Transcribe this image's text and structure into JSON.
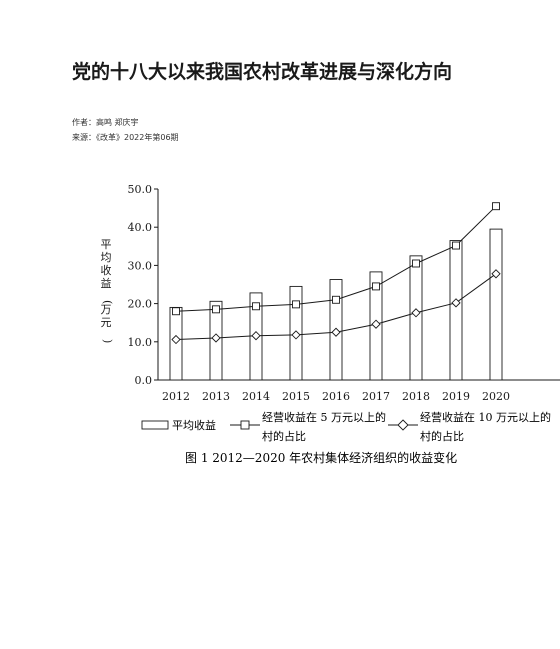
{
  "article": {
    "title": "党的十八大以来我国农村改革进展与深化方向",
    "authors": "作者：高鸣 郑庆宇",
    "source": "来源：《改革》2022年第06期"
  },
  "figure": {
    "caption": "图 1   2012—2020 年农村集体经济组织的收益变化",
    "ylabel": "平均收益(万元)",
    "legend": [
      {
        "label": "平均收益",
        "marker": "bar"
      },
      {
        "label_line1": "经营收益在 5 万元以上的",
        "label_line2": "村的占比",
        "marker": "square"
      },
      {
        "label_line1": "经营收益在 10 万元以上的",
        "label_line2": "村的占比",
        "marker": "diamond"
      }
    ]
  },
  "chart_data": {
    "type": "bar",
    "categories": [
      "2012",
      "2013",
      "2014",
      "2015",
      "2016",
      "2017",
      "2018",
      "2019",
      "2020"
    ],
    "ylim": [
      0,
      50
    ],
    "yticks": [
      "0.0",
      "10.0",
      "20.0",
      "30.0",
      "40.0",
      "50.0"
    ],
    "ylabel": "平均收益(万元)",
    "series": [
      {
        "name": "平均收益",
        "kind": "bar",
        "values": [
          19.0,
          20.6,
          22.8,
          24.5,
          26.3,
          28.3,
          32.5,
          36.5,
          39.5
        ]
      },
      {
        "name": "经营收益在 5 万元以上的村的占比",
        "kind": "line",
        "marker": "square",
        "values": [
          18.0,
          18.5,
          19.3,
          19.8,
          21.0,
          24.5,
          30.5,
          35.2,
          45.5
        ]
      },
      {
        "name": "经营收益在 10 万元以上的村的占比",
        "kind": "line",
        "marker": "diamond",
        "values": [
          10.6,
          11.0,
          11.6,
          11.8,
          12.5,
          14.6,
          17.6,
          20.2,
          27.8
        ]
      }
    ],
    "grid": false,
    "legend_position": "bottom"
  },
  "colors": {
    "ink": "#1a1a1a",
    "bar_fill": "#ffffff"
  }
}
